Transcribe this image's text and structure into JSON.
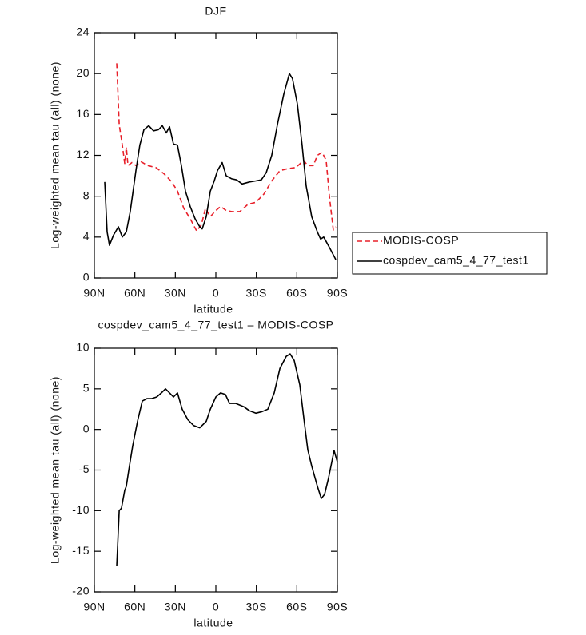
{
  "chart_data": [
    {
      "type": "line",
      "title": "DJF",
      "xlabel": "latitude",
      "ylabel": "Log-weighted mean tau (all) (none)",
      "xlim": [
        90,
        -90
      ],
      "xticks": [
        {
          "value": 90,
          "label": "90N"
        },
        {
          "value": 60,
          "label": "60N"
        },
        {
          "value": 30,
          "label": "30N"
        },
        0,
        {
          "value": -30,
          "label": "30S"
        },
        {
          "value": -60,
          "label": "60S"
        },
        {
          "value": -90,
          "label": "90S"
        }
      ],
      "ylim": [
        0,
        24
      ],
      "yticks": [
        0,
        4,
        8,
        12,
        16,
        20,
        24
      ],
      "legend": "right",
      "series": [
        {
          "name": "MODIS-COSP",
          "color": "#e8202a",
          "linestyle": "dashed",
          "x": [
            73.4,
            71.6,
            69.3,
            67.5,
            66.3,
            65.1,
            62.2,
            59.2,
            55.7,
            50.3,
            44.4,
            38.5,
            32.6,
            28.4,
            23.7,
            19.0,
            14.2,
            10.7,
            7.7,
            4.1,
            0.0,
            -3.5,
            -7.7,
            -11.8,
            -17.8,
            -23.7,
            -29.6,
            -35.5,
            -41.4,
            -47.4,
            -53.3,
            -59.2,
            -65.1,
            -68.1,
            -72.2,
            -75.2,
            -78.7,
            -81.7,
            -84.1,
            -87.0,
            -88.8
          ],
          "values": [
            21,
            15,
            13,
            11.2,
            12.8,
            11,
            11.3,
            11,
            11.4,
            11,
            10.8,
            10.2,
            9.4,
            8.5,
            6.8,
            5.8,
            4.6,
            5.2,
            6.8,
            6.0,
            6.6,
            7.0,
            6.6,
            6.5,
            6.5,
            7.2,
            7.4,
            8.2,
            9.5,
            10.5,
            10.7,
            10.8,
            11.5,
            11.0,
            11.0,
            12.0,
            12.3,
            11.5,
            8.0,
            4.7,
            5.0
          ]
        },
        {
          "name": "cospdev_cam5_4_77_test1",
          "color": "#000000",
          "linestyle": "solid",
          "x": [
            82.3,
            80.5,
            78.8,
            75.8,
            72.2,
            69.3,
            66.3,
            63.4,
            59.2,
            56.3,
            53.3,
            49.7,
            46.2,
            42.6,
            39.7,
            36.7,
            34.3,
            31.4,
            28.4,
            25.5,
            22.5,
            19.0,
            15.4,
            11.9,
            10.1,
            7.1,
            4.1,
            1.2,
            -1.2,
            -4.7,
            -7.7,
            -11.8,
            -15.4,
            -19.5,
            -24.9,
            -29.6,
            -33.7,
            -37.3,
            -41.4,
            -45.6,
            -50.3,
            -54.5,
            -56.8,
            -60.4,
            -63.9,
            -66.9,
            -71.0,
            -75.2,
            -77.6,
            -79.9,
            -84.1,
            -88.8
          ],
          "values": [
            9.4,
            4.5,
            3.2,
            4.2,
            5.0,
            4.0,
            4.5,
            6.5,
            10.5,
            13,
            14.5,
            14.9,
            14.4,
            14.5,
            14.9,
            14.2,
            14.8,
            13.1,
            13.0,
            11,
            8.5,
            7,
            5.8,
            5.0,
            4.8,
            6,
            8.5,
            9.5,
            10.5,
            11.3,
            10,
            9.7,
            9.6,
            9.2,
            9.4,
            9.5,
            9.6,
            10.3,
            12,
            15,
            18,
            20,
            19.5,
            17,
            13,
            9,
            6.0,
            4.5,
            3.8,
            4.0,
            3.0,
            1.8
          ]
        }
      ]
    },
    {
      "type": "line",
      "title": "cospdev_cam5_4_77_test1 – MODIS-COSP",
      "xlabel": "latitude",
      "ylabel": "Log-weighted mean tau (all) (none)",
      "xlim": [
        90,
        -90
      ],
      "xticks": [
        {
          "value": 90,
          "label": "90N"
        },
        {
          "value": 60,
          "label": "60N"
        },
        {
          "value": 30,
          "label": "30N"
        },
        0,
        {
          "value": -30,
          "label": "30S"
        },
        {
          "value": -60,
          "label": "60S"
        },
        {
          "value": -90,
          "label": "90S"
        }
      ],
      "ylim": [
        -20,
        10
      ],
      "yticks": [
        -20,
        -15,
        -10,
        -5,
        0,
        5,
        10
      ],
      "color": "#000000",
      "linestyle": "solid",
      "x": [
        73.4,
        71.6,
        69.9,
        67.5,
        66.3,
        64.5,
        61.6,
        58.0,
        54.5,
        50.9,
        47.4,
        43.8,
        40.3,
        37.3,
        34.3,
        31.4,
        28.4,
        24.9,
        20.7,
        16.6,
        11.9,
        7.1,
        4.1,
        0.0,
        -3.5,
        -7.1,
        -10.1,
        -14.8,
        -20.7,
        -24.9,
        -29.6,
        -34.3,
        -38.5,
        -43.2,
        -47.4,
        -52.1,
        -55.0,
        -58.0,
        -62.2,
        -65.1,
        -68.1,
        -71.0,
        -75.2,
        -78.1,
        -80.5,
        -83.4,
        -87.6,
        -90
      ],
      "values": [
        -16.8,
        -10,
        -9.7,
        -7.5,
        -7.0,
        -5,
        -2,
        1,
        3.5,
        3.8,
        3.8,
        4.0,
        4.5,
        5.0,
        4.5,
        4.0,
        4.5,
        2.5,
        1.2,
        0.5,
        0.2,
        1.0,
        2.5,
        4.0,
        4.5,
        4.3,
        3.2,
        3.2,
        2.8,
        2.3,
        2.0,
        2.2,
        2.5,
        4.5,
        7.5,
        9.0,
        9.3,
        8.5,
        5.5,
        1.5,
        -2.5,
        -4.5,
        -7.0,
        -8.5,
        -8.0,
        -6.0,
        -2.6,
        -4.0
      ]
    }
  ]
}
